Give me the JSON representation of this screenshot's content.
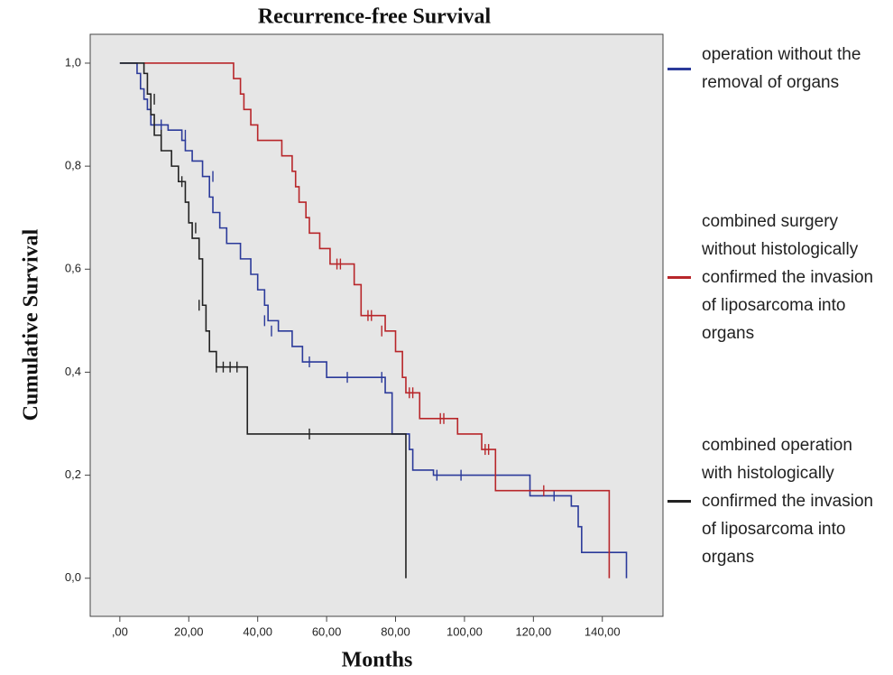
{
  "chart_data": {
    "type": "line",
    "step": true,
    "title": "Recurrence-free Survival",
    "x_label": "Months",
    "y_label": "Cumulative Survival",
    "xlim": [
      -8.6,
      157.6
    ],
    "ylim": [
      -0.074,
      1.056
    ],
    "xticks": [
      {
        "value": 0,
        "label": ",00"
      },
      {
        "value": 20,
        "label": "20,00"
      },
      {
        "value": 40,
        "label": "40,00"
      },
      {
        "value": 60,
        "label": "60,00"
      },
      {
        "value": 80,
        "label": "80,00"
      },
      {
        "value": 100,
        "label": "100,00"
      },
      {
        "value": 120,
        "label": "120,00"
      },
      {
        "value": 140,
        "label": "140,00"
      }
    ],
    "yticks": [
      {
        "value": 0,
        "label": "0,0"
      },
      {
        "value": 0.2,
        "label": "0,2"
      },
      {
        "value": 0.4,
        "label": "0,4"
      },
      {
        "value": 0.6,
        "label": "0,6"
      },
      {
        "value": 0.8,
        "label": "0,8"
      },
      {
        "value": 1,
        "label": "1,0"
      }
    ],
    "background": "#e6e6e6",
    "series": [
      {
        "name": "operation without the removal of organs",
        "color": "#2b3a9a",
        "x": [
          0,
          5,
          5,
          6,
          6,
          7,
          7,
          8,
          8,
          9,
          9,
          14,
          14,
          18,
          18,
          19,
          19,
          21,
          21,
          24,
          24,
          26,
          26,
          27,
          27,
          29,
          29,
          31,
          31,
          35,
          35,
          38,
          38,
          40,
          40,
          42,
          42,
          43,
          43,
          46,
          46,
          50,
          50,
          53,
          53,
          60,
          60,
          77,
          77,
          79,
          79,
          84,
          84,
          85,
          85,
          91,
          91,
          119,
          119,
          131,
          131,
          133,
          133,
          134,
          134,
          147,
          147
        ],
        "values": [
          1,
          1,
          0.98,
          0.98,
          0.95,
          0.95,
          0.93,
          0.93,
          0.91,
          0.91,
          0.88,
          0.88,
          0.87,
          0.87,
          0.85,
          0.85,
          0.83,
          0.83,
          0.81,
          0.81,
          0.78,
          0.78,
          0.74,
          0.74,
          0.71,
          0.71,
          0.68,
          0.68,
          0.65,
          0.65,
          0.62,
          0.62,
          0.59,
          0.59,
          0.56,
          0.56,
          0.53,
          0.53,
          0.5,
          0.5,
          0.48,
          0.48,
          0.45,
          0.45,
          0.42,
          0.42,
          0.39,
          0.39,
          0.36,
          0.36,
          0.28,
          0.28,
          0.25,
          0.25,
          0.21,
          0.21,
          0.2,
          0.2,
          0.16,
          0.16,
          0.14,
          0.14,
          0.1,
          0.1,
          0.05,
          0.05,
          0
        ],
        "censored_x": [
          12,
          19,
          27,
          42,
          44,
          55,
          66,
          76,
          92,
          99,
          126
        ],
        "censored_values": [
          0.88,
          0.86,
          0.78,
          0.5,
          0.48,
          0.42,
          0.39,
          0.39,
          0.2,
          0.2,
          0.16
        ]
      },
      {
        "name": "combined surgery without histologically confirmed the invasion of liposarcoma into organs",
        "color": "#b8262a",
        "x": [
          7,
          33,
          33,
          35,
          35,
          36,
          36,
          38,
          38,
          40,
          40,
          47,
          47,
          50,
          50,
          51,
          51,
          52,
          52,
          54,
          54,
          55,
          55,
          58,
          58,
          61,
          61,
          68,
          68,
          70,
          70,
          77,
          77,
          80,
          80,
          82,
          82,
          83,
          83,
          87,
          87,
          98,
          98,
          105,
          105,
          109,
          109,
          142,
          142
        ],
        "values": [
          1,
          1,
          0.97,
          0.97,
          0.94,
          0.94,
          0.91,
          0.91,
          0.88,
          0.88,
          0.85,
          0.85,
          0.82,
          0.82,
          0.79,
          0.79,
          0.76,
          0.76,
          0.73,
          0.73,
          0.7,
          0.7,
          0.67,
          0.67,
          0.64,
          0.64,
          0.61,
          0.61,
          0.57,
          0.57,
          0.51,
          0.51,
          0.48,
          0.48,
          0.44,
          0.44,
          0.39,
          0.39,
          0.36,
          0.36,
          0.31,
          0.31,
          0.28,
          0.28,
          0.25,
          0.25,
          0.17,
          0.17,
          0
        ],
        "censored_x": [
          63,
          64,
          72,
          73,
          76,
          84,
          85,
          93,
          94,
          106,
          107,
          123
        ],
        "censored_values": [
          0.61,
          0.61,
          0.51,
          0.51,
          0.48,
          0.36,
          0.36,
          0.31,
          0.31,
          0.25,
          0.25,
          0.17
        ]
      },
      {
        "name": "combined operation with histologically confirmed the invasion of liposarcoma into organs",
        "color": "#222222",
        "x": [
          0,
          7,
          7,
          8,
          8,
          9,
          9,
          10,
          10,
          12,
          12,
          15,
          15,
          17,
          17,
          19,
          19,
          20,
          20,
          21,
          21,
          23,
          23,
          24,
          24,
          25,
          25,
          26,
          26,
          28,
          28,
          37,
          37,
          83,
          83
        ],
        "values": [
          1,
          1,
          0.98,
          0.98,
          0.94,
          0.94,
          0.9,
          0.9,
          0.86,
          0.86,
          0.83,
          0.83,
          0.8,
          0.8,
          0.77,
          0.77,
          0.73,
          0.73,
          0.69,
          0.69,
          0.66,
          0.66,
          0.62,
          0.62,
          0.53,
          0.53,
          0.48,
          0.48,
          0.44,
          0.44,
          0.41,
          0.41,
          0.28,
          0.28,
          0
        ],
        "censored_x": [
          10,
          12,
          18,
          22,
          23,
          28,
          30,
          32,
          34,
          55
        ],
        "censored_values": [
          0.93,
          0.86,
          0.77,
          0.68,
          0.53,
          0.41,
          0.41,
          0.41,
          0.41,
          0.28
        ]
      }
    ]
  }
}
